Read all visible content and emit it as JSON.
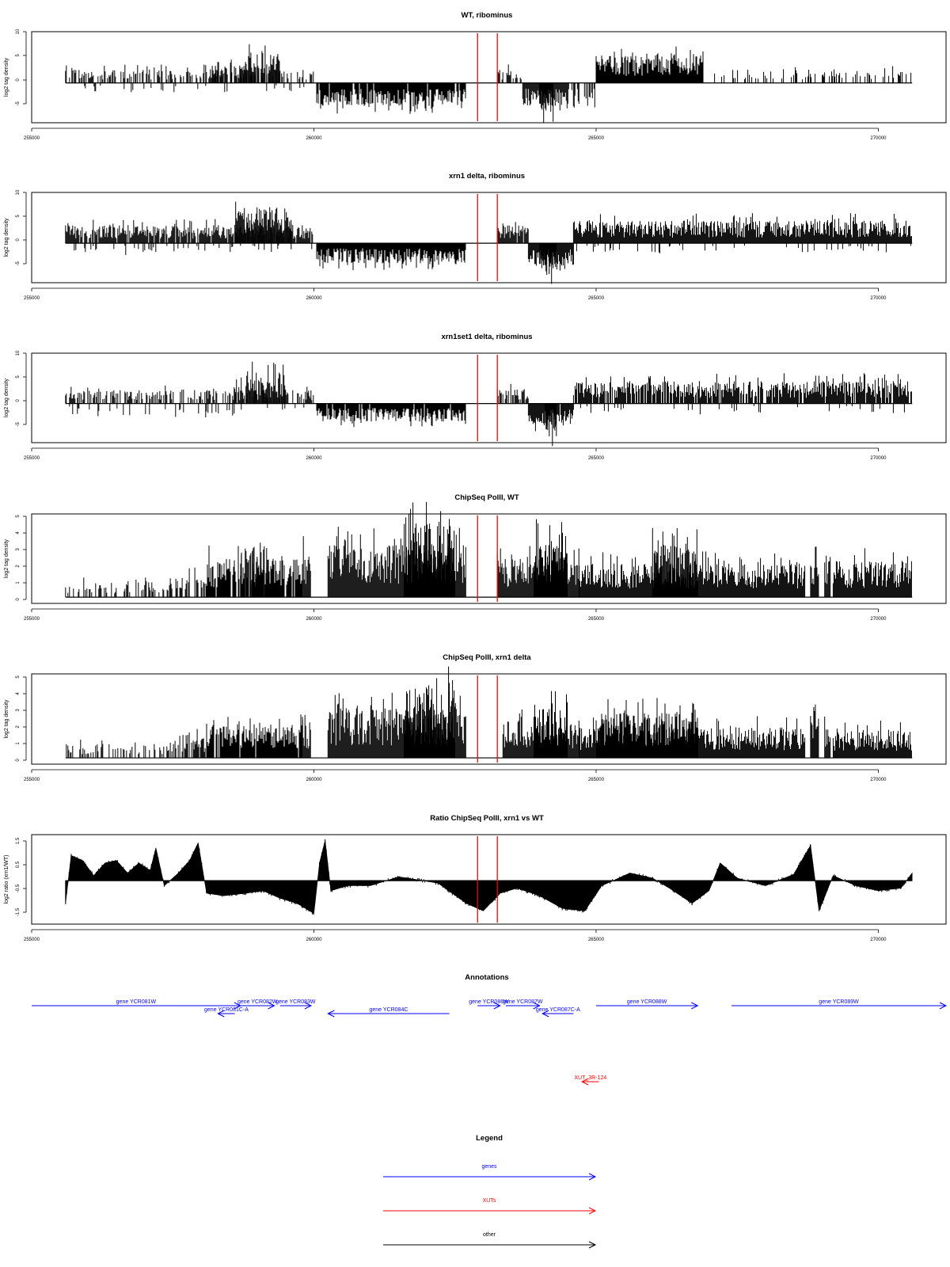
{
  "x_axis": {
    "min": 255000,
    "max": 271200,
    "ticks": [
      "255000",
      "260000",
      "265000",
      "270000"
    ]
  },
  "markers": {
    "positions": [
      262900,
      263250
    ],
    "color": "#ff0000"
  },
  "chart_data": [
    {
      "type": "bar",
      "title": "WT, ribominus",
      "ylabel": "log2 tag density",
      "ylim": [
        -8,
        10.5
      ],
      "yticks": [
        "10",
        "5",
        "0",
        "-5"
      ],
      "segments": [
        {
          "x": [
            255600,
            260000
          ],
          "sign": 1,
          "amp": 3,
          "density": 0.5
        },
        {
          "x": [
            258200,
            259000
          ],
          "sign": 1,
          "amp": 4,
          "density": 0.5
        },
        {
          "x": [
            258800,
            259400
          ],
          "sign": 1,
          "amp": 7,
          "density": 0.8
        },
        {
          "x": [
            260050,
            262700
          ],
          "sign": -1,
          "amp": 5,
          "density": 0.95
        },
        {
          "x": [
            263250,
            263700
          ],
          "sign": 1,
          "amp": 3,
          "density": 0.6
        },
        {
          "x": [
            263700,
            264500
          ],
          "sign": -1,
          "amp": 5,
          "density": 0.95
        },
        {
          "x": [
            264000,
            264250
          ],
          "sign": -1,
          "amp": 7.5,
          "density": 1.0
        },
        {
          "x": [
            265000,
            266900
          ],
          "sign": 1,
          "amp": 6,
          "density": 1.0
        },
        {
          "x": [
            267000,
            270600
          ],
          "sign": 1,
          "amp": 3,
          "density": 0.3
        },
        {
          "x": [
            255600,
            260000
          ],
          "sign": -1,
          "amp": 2,
          "density": 0.08
        },
        {
          "x": [
            264500,
            265000
          ],
          "sign": -1,
          "amp": 4,
          "density": 0.4
        }
      ]
    },
    {
      "type": "bar",
      "title": "xrn1 delta, ribominus",
      "ylabel": "log2 tag density",
      "ylim": [
        -8,
        10.5
      ],
      "yticks": [
        "10",
        "5",
        "0",
        "-5"
      ],
      "segments": [
        {
          "x": [
            255600,
            260000
          ],
          "sign": 1,
          "amp": 4,
          "density": 0.9
        },
        {
          "x": [
            258600,
            259600
          ],
          "sign": 1,
          "amp": 8,
          "density": 1.0
        },
        {
          "x": [
            260050,
            262700
          ],
          "sign": -1,
          "amp": 4.5,
          "density": 1.0
        },
        {
          "x": [
            263250,
            263800
          ],
          "sign": 1,
          "amp": 4,
          "density": 0.9
        },
        {
          "x": [
            263800,
            264600
          ],
          "sign": -1,
          "amp": 5,
          "density": 1.0
        },
        {
          "x": [
            264000,
            264300
          ],
          "sign": -1,
          "amp": 7,
          "density": 1.0
        },
        {
          "x": [
            264600,
            270600
          ],
          "sign": 1,
          "amp": 5,
          "density": 1.0
        },
        {
          "x": [
            255600,
            260000
          ],
          "sign": -1,
          "amp": 2,
          "density": 0.15
        },
        {
          "x": [
            264600,
            270600
          ],
          "sign": -1,
          "amp": 2,
          "density": 0.08
        }
      ]
    },
    {
      "type": "bar",
      "title": "xrn1set1 delta, ribominus",
      "ylabel": "log2 tag density",
      "ylim": [
        -8,
        10.5
      ],
      "yticks": [
        "10",
        "5",
        "0",
        "-5"
      ],
      "segments": [
        {
          "x": [
            255600,
            260000
          ],
          "sign": 1,
          "amp": 3,
          "density": 0.55
        },
        {
          "x": [
            258600,
            259500
          ],
          "sign": 1,
          "amp": 7,
          "density": 0.9
        },
        {
          "x": [
            260050,
            262700
          ],
          "sign": -1,
          "amp": 4,
          "density": 0.95
        },
        {
          "x": [
            263250,
            263800
          ],
          "sign": 1,
          "amp": 3.5,
          "density": 0.7
        },
        {
          "x": [
            263800,
            264600
          ],
          "sign": -1,
          "amp": 5,
          "density": 0.95
        },
        {
          "x": [
            264100,
            264300
          ],
          "sign": -1,
          "amp": 7.5,
          "density": 1.0
        },
        {
          "x": [
            264600,
            270600
          ],
          "sign": 1,
          "amp": 5,
          "density": 0.85
        },
        {
          "x": [
            255600,
            260000
          ],
          "sign": -1,
          "amp": 2.5,
          "density": 0.1
        },
        {
          "x": [
            264600,
            270600
          ],
          "sign": -1,
          "amp": 2,
          "density": 0.06
        }
      ]
    },
    {
      "type": "bar",
      "title": "ChipSeq PolII, WT",
      "ylabel": "log2 tag density",
      "ylim": [
        -0.2,
        5.2
      ],
      "yticks": [
        "5",
        "4",
        "3",
        "2",
        "1",
        "0"
      ],
      "segments": [
        {
          "x": [
            255600,
            257400
          ],
          "sign": 1,
          "amp": 1.0,
          "density": 0.35
        },
        {
          "x": [
            257400,
            258100
          ],
          "sign": 1,
          "amp": 1.5,
          "density": 0.6
        },
        {
          "x": [
            258100,
            259800
          ],
          "sign": 1,
          "amp": 2.5,
          "density": 0.9
        },
        {
          "x": [
            258700,
            259200
          ],
          "sign": 1,
          "amp": 3.2,
          "density": 0.9
        },
        {
          "x": [
            259800,
            259950
          ],
          "sign": 1,
          "amp": 3.2,
          "density": 1.0
        },
        {
          "x": [
            260250,
            262700
          ],
          "sign": 1,
          "amp": 3.4,
          "density": 1.0
        },
        {
          "x": [
            261600,
            262500
          ],
          "sign": 1,
          "amp": 4.8,
          "density": 1.0
        },
        {
          "x": [
            263250,
            264700
          ],
          "sign": 1,
          "amp": 2.6,
          "density": 1.0
        },
        {
          "x": [
            263900,
            264500
          ],
          "sign": 1,
          "amp": 3.8,
          "density": 1.0
        },
        {
          "x": [
            264700,
            268700
          ],
          "sign": 1,
          "amp": 2.2,
          "density": 1.0
        },
        {
          "x": [
            266000,
            266800
          ],
          "sign": 1,
          "amp": 3.4,
          "density": 1.0
        },
        {
          "x": [
            268800,
            268950
          ],
          "sign": 1,
          "amp": 3.0,
          "density": 1.0
        },
        {
          "x": [
            269050,
            269150
          ],
          "sign": 1,
          "amp": 3.0,
          "density": 1.0
        },
        {
          "x": [
            269200,
            270600
          ],
          "sign": 1,
          "amp": 2.4,
          "density": 1.0
        }
      ]
    },
    {
      "type": "bar",
      "title": "ChipSeq PolII, xrn1 delta",
      "ylabel": "log2 tag density",
      "ylim": [
        -0.2,
        5.2
      ],
      "yticks": [
        "5",
        "4",
        "3",
        "2",
        "1",
        "0"
      ],
      "segments": [
        {
          "x": [
            255600,
            257400
          ],
          "sign": 1,
          "amp": 0.9,
          "density": 0.35
        },
        {
          "x": [
            257400,
            258100
          ],
          "sign": 1,
          "amp": 1.5,
          "density": 0.6
        },
        {
          "x": [
            258100,
            259800
          ],
          "sign": 1,
          "amp": 2.2,
          "density": 0.9
        },
        {
          "x": [
            259800,
            259950
          ],
          "sign": 1,
          "amp": 2.1,
          "density": 1.0
        },
        {
          "x": [
            260250,
            262700
          ],
          "sign": 1,
          "amp": 3.2,
          "density": 1.0
        },
        {
          "x": [
            261600,
            262500
          ],
          "sign": 1,
          "amp": 4.6,
          "density": 1.0
        },
        {
          "x": [
            263350,
            264700
          ],
          "sign": 1,
          "amp": 2.4,
          "density": 1.0
        },
        {
          "x": [
            263900,
            264500
          ],
          "sign": 1,
          "amp": 3.2,
          "density": 1.0
        },
        {
          "x": [
            264700,
            268700
          ],
          "sign": 1,
          "amp": 2.0,
          "density": 1.0
        },
        {
          "x": [
            265000,
            266800
          ],
          "sign": 1,
          "amp": 2.9,
          "density": 1.0
        },
        {
          "x": [
            268800,
            268950
          ],
          "sign": 1,
          "amp": 2.6,
          "density": 1.0
        },
        {
          "x": [
            269050,
            269150
          ],
          "sign": 1,
          "amp": 2.4,
          "density": 1.0
        },
        {
          "x": [
            269200,
            270600
          ],
          "sign": 1,
          "amp": 1.8,
          "density": 1.0
        }
      ]
    },
    {
      "type": "area",
      "title": "Ratio ChipSeq PolII, xrn1 vs WT",
      "ylabel": "log2 ratio (xrn1/WT)",
      "ylim": [
        -1.6,
        1.7
      ],
      "yticks": [
        "1.5",
        "0.5",
        "-0.5",
        "-1.5"
      ],
      "points": [
        [
          255600,
          -0.9
        ],
        [
          255700,
          1.0
        ],
        [
          255900,
          0.8
        ],
        [
          256100,
          0.2
        ],
        [
          256300,
          0.7
        ],
        [
          256500,
          0.8
        ],
        [
          256700,
          0.3
        ],
        [
          256900,
          0.7
        ],
        [
          257100,
          0.4
        ],
        [
          257200,
          1.3
        ],
        [
          257350,
          -0.2
        ],
        [
          257600,
          0.3
        ],
        [
          257800,
          0.8
        ],
        [
          257950,
          1.5
        ],
        [
          258100,
          -0.5
        ],
        [
          258400,
          -0.6
        ],
        [
          258800,
          -0.5
        ],
        [
          259100,
          -0.4
        ],
        [
          259400,
          -0.7
        ],
        [
          259700,
          -0.9
        ],
        [
          260000,
          -1.3
        ],
        [
          260100,
          0.7
        ],
        [
          260200,
          1.6
        ],
        [
          260300,
          -0.4
        ],
        [
          260600,
          -0.2
        ],
        [
          261000,
          -0.2
        ],
        [
          261500,
          0.15
        ],
        [
          261800,
          0.05
        ],
        [
          262200,
          -0.1
        ],
        [
          262700,
          -0.9
        ],
        [
          263000,
          -1.2
        ],
        [
          263300,
          -0.5
        ],
        [
          263600,
          -0.3
        ],
        [
          264000,
          -0.6
        ],
        [
          264400,
          -1.1
        ],
        [
          264800,
          -1.2
        ],
        [
          265100,
          -0.2
        ],
        [
          265600,
          0.3
        ],
        [
          266000,
          0.1
        ],
        [
          266300,
          -0.3
        ],
        [
          266700,
          -0.9
        ],
        [
          267000,
          -0.4
        ],
        [
          267200,
          0.7
        ],
        [
          267500,
          0.1
        ],
        [
          268000,
          -0.2
        ],
        [
          268500,
          0.25
        ],
        [
          268800,
          1.4
        ],
        [
          268950,
          -1.2
        ],
        [
          269200,
          0.2
        ],
        [
          269600,
          -0.2
        ],
        [
          270000,
          -0.4
        ],
        [
          270400,
          -0.3
        ],
        [
          270600,
          0.3
        ]
      ]
    }
  ],
  "annotations": {
    "title": "Annotations",
    "genes": [
      {
        "label": "gene YCR081W",
        "start": 255000,
        "end": 258700,
        "dir": 1,
        "row": 0
      },
      {
        "label": "gene YCR081C-A",
        "start": 258300,
        "end": 258600,
        "dir": -1,
        "row": 1
      },
      {
        "label": "gene YCR082W",
        "start": 258700,
        "end": 259300,
        "dir": 1,
        "row": 0
      },
      {
        "label": "gene YCR083W",
        "start": 259400,
        "end": 259950,
        "dir": 1,
        "row": 0
      },
      {
        "label": "gene YCR084C",
        "start": 260250,
        "end": 262400,
        "dir": -1,
        "row": 1
      },
      {
        "label": "gene YCR086W",
        "start": 262900,
        "end": 263300,
        "dir": 1,
        "row": 0
      },
      {
        "label": "gene YCR087W",
        "start": 263400,
        "end": 264000,
        "dir": 1,
        "row": 0
      },
      {
        "label": "gene YCR087C-A",
        "start": 264050,
        "end": 264600,
        "dir": -1,
        "row": 1
      },
      {
        "label": "gene YCR088W",
        "start": 265000,
        "end": 266800,
        "dir": 1,
        "row": 0
      },
      {
        "label": "gene YCR089W",
        "start": 267400,
        "end": 271200,
        "dir": 1,
        "row": 0
      }
    ],
    "xuts": [
      {
        "label": "XUT_3R-124",
        "start": 264750,
        "end": 265050,
        "dir": -1
      }
    ]
  },
  "legend": {
    "title": "Legend",
    "items": [
      {
        "label": "genes",
        "color": "#0000ff"
      },
      {
        "label": "XUTs",
        "color": "#ff0000"
      },
      {
        "label": "other",
        "color": "#000000"
      }
    ]
  },
  "colors": {
    "gene": "#0000ff",
    "xut": "#ff0000",
    "signal": "#000000"
  }
}
